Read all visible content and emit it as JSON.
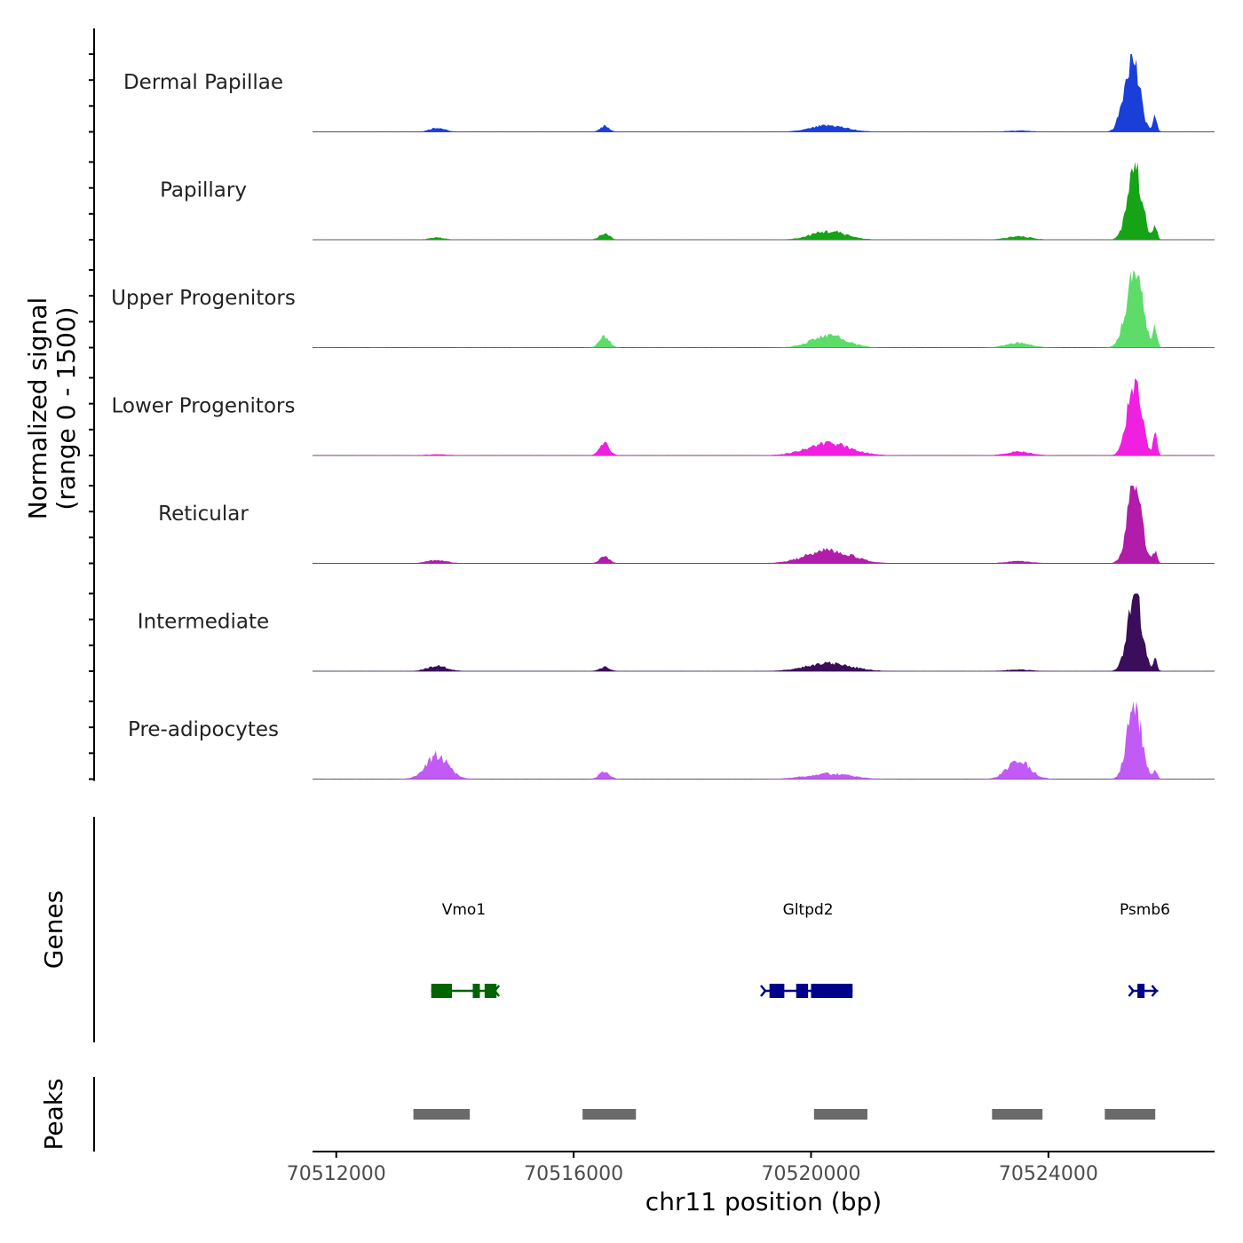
{
  "chart_data": {
    "type": "area",
    "title": "",
    "xlabel": "chr11 position (bp)",
    "ylabel": "Normalized signal",
    "ylabel_range": "(range 0 - 1500)",
    "chromosome": "chr11",
    "xlim": [
      70511600,
      70526800
    ],
    "ylim": [
      0,
      1500
    ],
    "x_ticks": [
      70512000,
      70516000,
      70520000,
      70524000
    ],
    "x_tick_labels": [
      "70512000",
      "70516000",
      "70520000",
      "70524000"
    ],
    "tracks": [
      {
        "name": "Dermal Papillae",
        "color": "#1a3fd9",
        "peaks": [
          {
            "x": 70513700,
            "height": 80,
            "width": 300
          },
          {
            "x": 70516520,
            "height": 110,
            "width": 180
          },
          {
            "x": 70520300,
            "height": 120,
            "width": 700
          },
          {
            "x": 70523500,
            "height": 22,
            "width": 500
          },
          {
            "x": 70525400,
            "height": 1500,
            "width": 300
          },
          {
            "x": 70525800,
            "height": 280,
            "width": 80
          }
        ]
      },
      {
        "name": "Papillary",
        "color": "#16a316",
        "peaks": [
          {
            "x": 70513700,
            "height": 40,
            "width": 300
          },
          {
            "x": 70516520,
            "height": 120,
            "width": 200
          },
          {
            "x": 70520300,
            "height": 160,
            "width": 700
          },
          {
            "x": 70523500,
            "height": 60,
            "width": 500
          },
          {
            "x": 70525450,
            "height": 1500,
            "width": 280
          },
          {
            "x": 70525800,
            "height": 250,
            "width": 80
          }
        ]
      },
      {
        "name": "Upper Progenitors",
        "color": "#5ddc6a",
        "peaks": [
          {
            "x": 70516520,
            "height": 220,
            "width": 200
          },
          {
            "x": 70520300,
            "height": 230,
            "width": 700
          },
          {
            "x": 70523500,
            "height": 90,
            "width": 500
          },
          {
            "x": 70525450,
            "height": 1500,
            "width": 320
          },
          {
            "x": 70525800,
            "height": 380,
            "width": 80
          }
        ]
      },
      {
        "name": "Lower Progenitors",
        "color": "#f020e0",
        "peaks": [
          {
            "x": 70513700,
            "height": 20,
            "width": 500
          },
          {
            "x": 70516520,
            "height": 220,
            "width": 200
          },
          {
            "x": 70520300,
            "height": 230,
            "width": 900
          },
          {
            "x": 70523500,
            "height": 70,
            "width": 500
          },
          {
            "x": 70525450,
            "height": 1500,
            "width": 280
          },
          {
            "x": 70525800,
            "height": 380,
            "width": 80
          }
        ]
      },
      {
        "name": "Reticular",
        "color": "#b11cab",
        "peaks": [
          {
            "x": 70513700,
            "height": 60,
            "width": 400
          },
          {
            "x": 70516520,
            "height": 120,
            "width": 200
          },
          {
            "x": 70520300,
            "height": 250,
            "width": 900
          },
          {
            "x": 70523500,
            "height": 40,
            "width": 500
          },
          {
            "x": 70525450,
            "height": 1500,
            "width": 280
          },
          {
            "x": 70525800,
            "height": 220,
            "width": 80
          }
        ]
      },
      {
        "name": "Intermediate",
        "color": "#3a0e5a",
        "peaks": [
          {
            "x": 70513700,
            "height": 100,
            "width": 400
          },
          {
            "x": 70516520,
            "height": 80,
            "width": 200
          },
          {
            "x": 70520300,
            "height": 150,
            "width": 900
          },
          {
            "x": 70523500,
            "height": 30,
            "width": 500
          },
          {
            "x": 70525450,
            "height": 1500,
            "width": 280
          },
          {
            "x": 70525800,
            "height": 200,
            "width": 80
          }
        ]
      },
      {
        "name": "Pre-adipocytes",
        "color": "#c25af5",
        "peaks": [
          {
            "x": 70513700,
            "height": 450,
            "width": 450
          },
          {
            "x": 70516520,
            "height": 150,
            "width": 200
          },
          {
            "x": 70520300,
            "height": 100,
            "width": 900
          },
          {
            "x": 70523500,
            "height": 350,
            "width": 450
          },
          {
            "x": 70525450,
            "height": 1500,
            "width": 280
          },
          {
            "x": 70525800,
            "height": 170,
            "width": 80
          }
        ]
      }
    ],
    "genes_label": "Genes",
    "genes": [
      {
        "name": "Vmo1",
        "start": 70513600,
        "end": 70514700,
        "strand": "-",
        "color": "#006400",
        "exons": [
          [
            70513600,
            70513950
          ],
          [
            70514300,
            70514420
          ],
          [
            70514500,
            70514700
          ]
        ]
      },
      {
        "name": "Gltpd2",
        "start": 70519200,
        "end": 70520700,
        "strand": "+",
        "color": "#00008b",
        "exons": [
          [
            70519300,
            70519550
          ],
          [
            70519750,
            70519950
          ],
          [
            70520000,
            70520700
          ]
        ]
      },
      {
        "name": "Psmb6",
        "start": 70525400,
        "end": 70525850,
        "strand": "+",
        "color": "#00008b",
        "exons": [
          [
            70525500,
            70525620
          ]
        ]
      }
    ],
    "peaks_label": "Peaks",
    "peak_regions": [
      [
        70513300,
        70514250
      ],
      [
        70516150,
        70517050
      ],
      [
        70520050,
        70520950
      ],
      [
        70523050,
        70523900
      ],
      [
        70524950,
        70525800
      ]
    ]
  }
}
